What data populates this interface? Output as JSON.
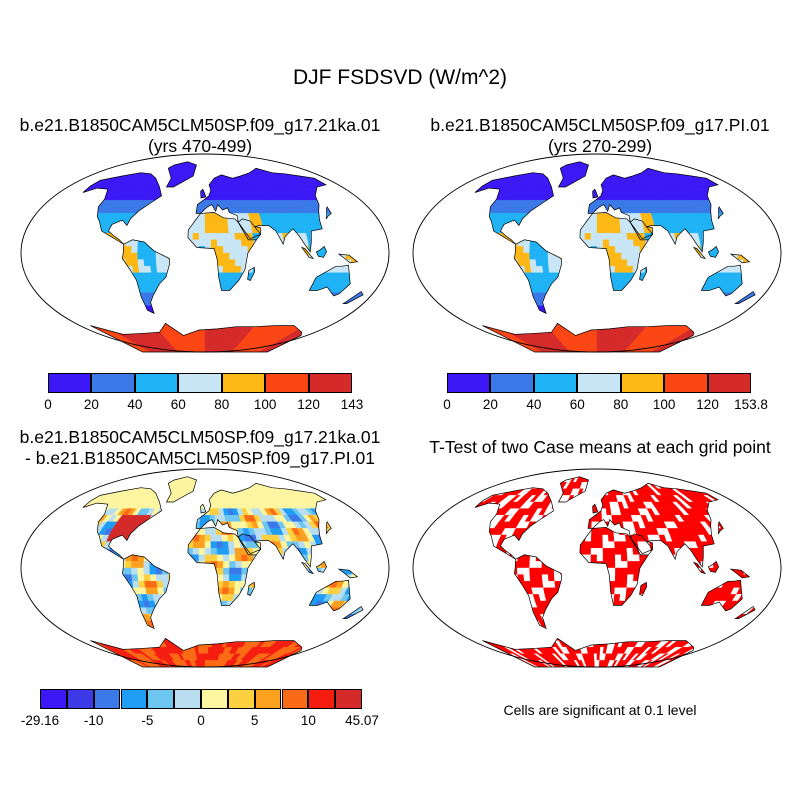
{
  "title": "DJF FSDSVD (W/m^2)",
  "panels": [
    {
      "title_lines": [
        "b.e21.B1850CAM5CLM50SP.f09_g17.21ka.01",
        "(yrs 470-499)"
      ],
      "colorbar": {
        "colors": [
          "#3b18f5",
          "#3b78e8",
          "#1fb2f5",
          "#c8e6f5",
          "#fdb815",
          "#fb4614",
          "#d42a2a"
        ],
        "labels": [
          "0",
          "20",
          "40",
          "60",
          "80",
          "100",
          "120",
          "143"
        ]
      }
    },
    {
      "title_lines": [
        "b.e21.B1850CAM5CLM50SP.f09_g17.PI.01",
        "(yrs 270-299)"
      ],
      "colorbar": {
        "colors": [
          "#3b18f5",
          "#3b78e8",
          "#1fb2f5",
          "#c8e6f5",
          "#fdb815",
          "#fb4614",
          "#d42a2a"
        ],
        "labels": [
          "0",
          "20",
          "40",
          "60",
          "80",
          "100",
          "120",
          "153.8"
        ]
      }
    },
    {
      "title_lines": [
        "b.e21.B1850CAM5CLM50SP.f09_g17.21ka.01",
        "- b.e21.B1850CAM5CLM50SP.f09_g17.PI.01"
      ],
      "colorbar": {
        "colors": [
          "#3b18f5",
          "#3b3ae6",
          "#3b78e8",
          "#1f9df5",
          "#6cc6f0",
          "#b8def0",
          "#fdf5a0",
          "#fdd040",
          "#fca020",
          "#fb6a14",
          "#f51d10",
          "#d42a2a"
        ],
        "labels": [
          "-29.16",
          "-10",
          "-5",
          "0",
          "5",
          "10",
          "45.07"
        ]
      }
    },
    {
      "title_lines": [
        "T-Test of two Case means at each grid point"
      ],
      "note": "Cells are significant at 0.1 level"
    }
  ]
}
